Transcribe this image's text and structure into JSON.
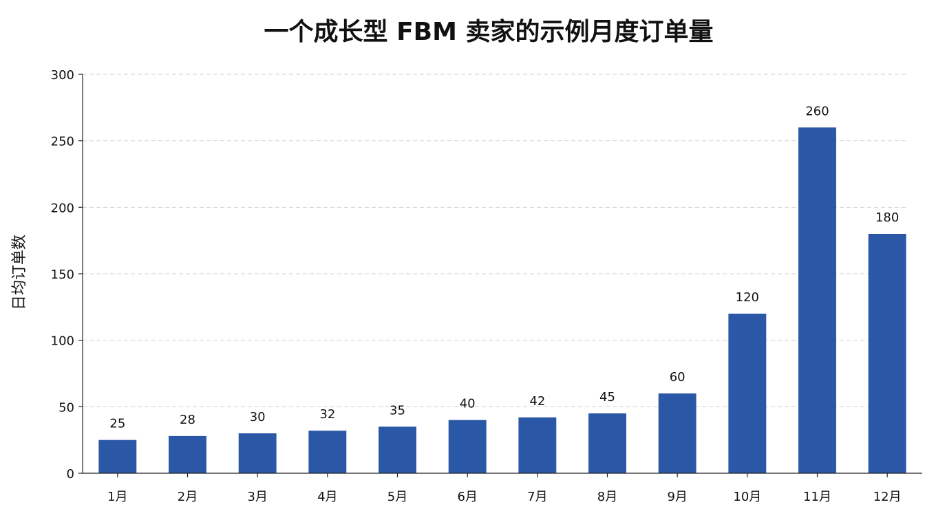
{
  "chart_data": {
    "type": "bar",
    "title": "一个成长型 FBM 卖家的示例月度订单量",
    "xlabel": "",
    "ylabel": "日均订单数",
    "categories": [
      "1月",
      "2月",
      "3月",
      "4月",
      "5月",
      "6月",
      "7月",
      "8月",
      "9月",
      "10月",
      "11月",
      "12月"
    ],
    "values": [
      25,
      28,
      30,
      32,
      35,
      40,
      42,
      45,
      60,
      120,
      260,
      180
    ],
    "ylim": [
      0,
      300
    ],
    "yticks": [
      0,
      50,
      100,
      150,
      200,
      250,
      300
    ],
    "grid": true,
    "bar_color": "#2b57a7"
  }
}
